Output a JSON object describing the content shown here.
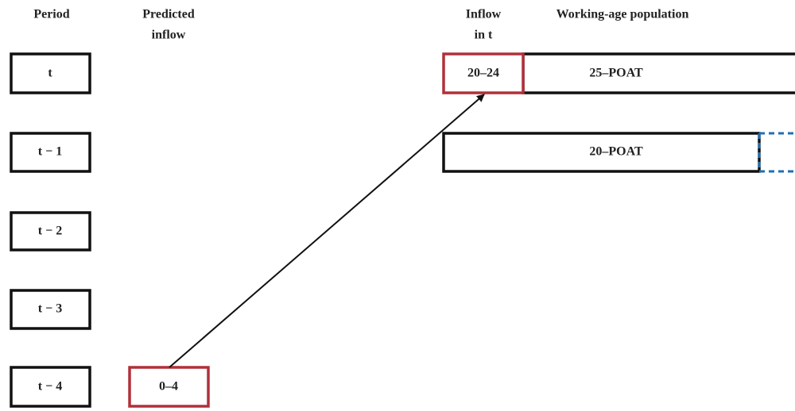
{
  "headers": {
    "period": "Period",
    "predicted_inflow": [
      "Predicted",
      "inflow"
    ],
    "inflow_in_t": [
      "Inflow",
      "in t"
    ],
    "working_age": "Working-age population"
  },
  "periods": [
    "t",
    "t − 1",
    "t − 2",
    "t − 3",
    "t − 4"
  ],
  "predicted_box": "0–4",
  "inflow_box": "20–24",
  "bars": [
    "25–POAT",
    "20–POAT"
  ]
}
